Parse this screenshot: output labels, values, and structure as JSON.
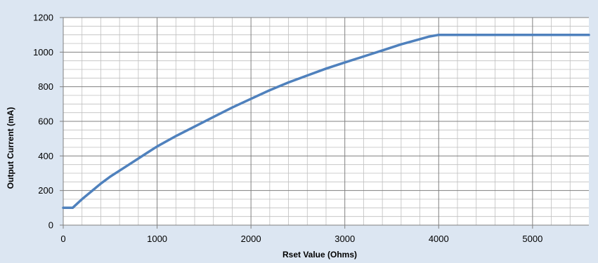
{
  "chart_data": {
    "type": "line",
    "xlabel": "Rset Value (Ohms)",
    "ylabel": "Output Current (mA)",
    "xlim": [
      0,
      5600
    ],
    "ylim": [
      0,
      1200
    ],
    "x_ticks": [
      0,
      1000,
      2000,
      3000,
      4000,
      5000
    ],
    "y_ticks": [
      0,
      200,
      400,
      600,
      800,
      1000,
      1200
    ],
    "x_minor_step": 200,
    "y_minor_step": 50,
    "grid": true,
    "legend": "none",
    "colors": {
      "line": "#4f81bd",
      "background": "#dce6f2",
      "plot_background": "#ffffff",
      "minor_grid": "#bfbfbf",
      "major_grid": "#808080"
    },
    "series": [
      {
        "x": [
          0,
          100,
          200,
          300,
          400,
          500,
          600,
          700,
          800,
          900,
          1000,
          1200,
          1400,
          1600,
          1800,
          2000,
          2200,
          2400,
          2600,
          2800,
          3000,
          3200,
          3400,
          3600,
          3800,
          3900,
          4000,
          4500,
          5000,
          5600
        ],
        "values": [
          100,
          100,
          150,
          195,
          240,
          280,
          315,
          350,
          385,
          420,
          455,
          515,
          570,
          625,
          680,
          730,
          780,
          825,
          865,
          905,
          940,
          975,
          1010,
          1045,
          1075,
          1090,
          1100,
          1100,
          1100,
          1100
        ]
      }
    ]
  }
}
